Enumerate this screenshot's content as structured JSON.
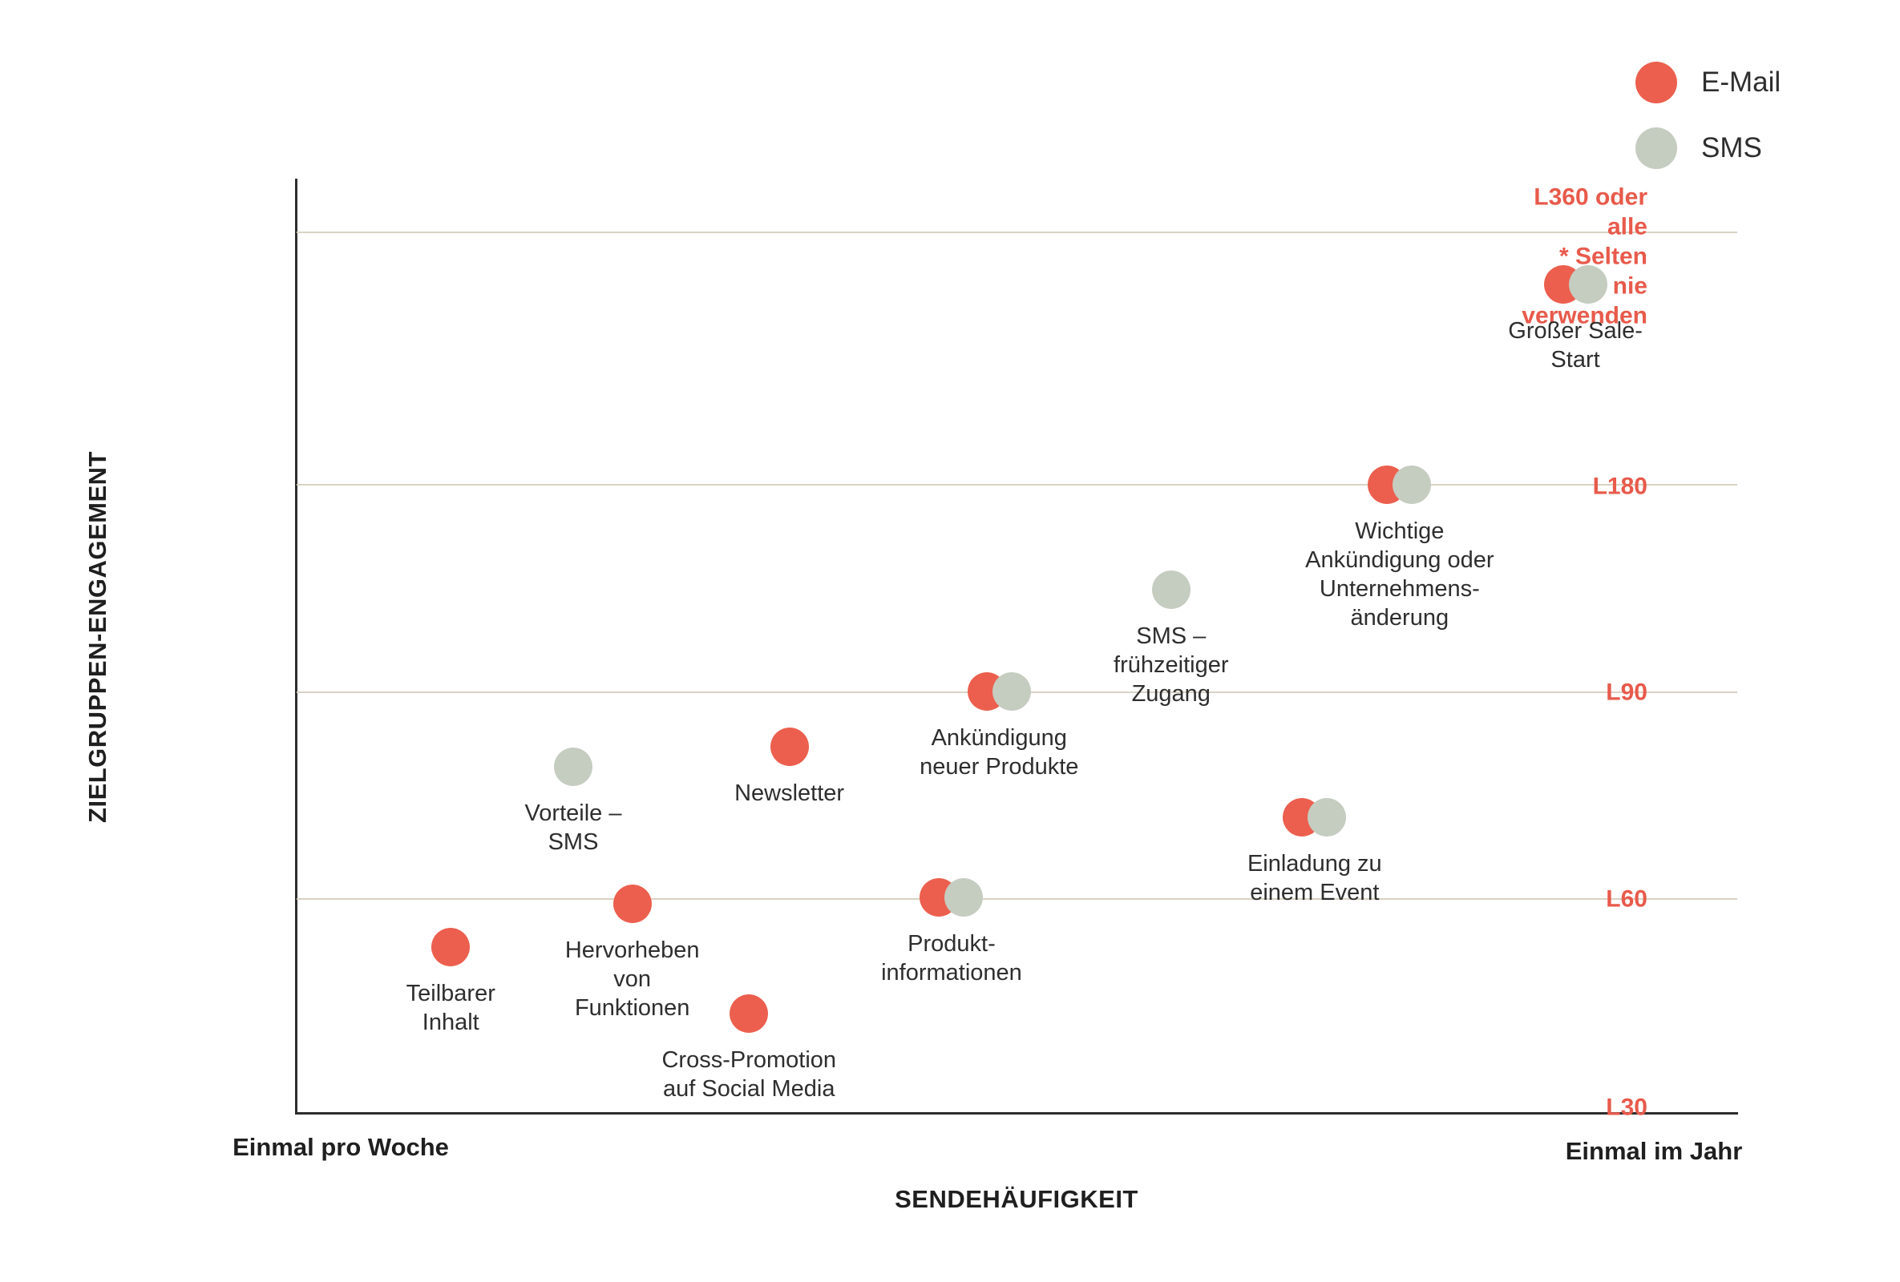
{
  "colors": {
    "email": "#ec5f4e",
    "sms": "#c5ccc0",
    "gridline": "#d9d2c3",
    "axis": "#2d2d2d",
    "tick_text": "#e85a4b",
    "label_text": "#2e2e2e"
  },
  "legend": {
    "items": [
      {
        "label": "E-Mail",
        "color": "#ec5f4e"
      },
      {
        "label": "SMS",
        "color": "#c5ccc0"
      }
    ]
  },
  "chart_data": {
    "type": "scatter",
    "title": "",
    "xlabel": "SENDEHÄUFIGKEIT",
    "ylabel": "ZIELGRUPPEN-ENGAGEMENT",
    "x_axis_labels": {
      "left": "Einmal pro Woche",
      "right": "Einmal im Jahr"
    },
    "x_range_meaning": "Sendehäufigkeit von einmal pro Woche (links) bis einmal im Jahr (rechts)",
    "grid": true,
    "legend_position": "top-right",
    "y_ticks": [
      {
        "lines": [
          "L360 oder",
          "alle",
          "* Selten",
          "oder nie",
          "verwenden"
        ],
        "y": 0.083,
        "gridline": true,
        "gridline_y": 0.0575
      },
      {
        "lines": [
          "L180"
        ],
        "y": 0.33,
        "gridline": true,
        "gridline_y": 0.328
      },
      {
        "lines": [
          "L90"
        ],
        "y": 0.55,
        "gridline": true,
        "gridline_y": 0.55
      },
      {
        "lines": [
          "L60"
        ],
        "y": 0.772,
        "gridline": true,
        "gridline_y": 0.772
      },
      {
        "lines": [
          "L30"
        ],
        "y": 0.995,
        "gridline": false,
        "gridline_y": 1.0
      }
    ],
    "series": [
      {
        "name": "E-Mail",
        "color": "#ec5f4e"
      },
      {
        "name": "SMS",
        "color": "#c5ccc0"
      }
    ],
    "points": [
      {
        "label": "Teilbarer Inhalt",
        "label_lines": [
          "Teilbarer",
          "Inhalt"
        ],
        "channels": [
          "E-Mail"
        ],
        "x": 0.107,
        "y": 0.823
      },
      {
        "label": "Hervorheben von Funktionen",
        "label_lines": [
          "Hervorheben",
          "von",
          "Funktionen"
        ],
        "channels": [
          "E-Mail"
        ],
        "x": 0.233,
        "y": 0.777
      },
      {
        "label": "Cross-Promotion auf Social Media",
        "label_lines": [
          "Cross-Promotion",
          "auf Social Media"
        ],
        "channels": [
          "E-Mail"
        ],
        "x": 0.314,
        "y": 0.894
      },
      {
        "label": "Vorteile – SMS",
        "label_lines": [
          "Vorteile –",
          "SMS"
        ],
        "channels": [
          "SMS"
        ],
        "x": 0.192,
        "y": 0.63
      },
      {
        "label": "Newsletter",
        "label_lines": [
          "Newsletter"
        ],
        "channels": [
          "E-Mail"
        ],
        "x": 0.342,
        "y": 0.609
      },
      {
        "label": "Produkt-informationen",
        "label_lines": [
          "Produkt-",
          "informationen"
        ],
        "channels": [
          "E-Mail",
          "SMS"
        ],
        "x": 0.446,
        "y": 0.77
      },
      {
        "label": "Ankündigung neuer Produkte",
        "label_lines": [
          "Ankündigung",
          "neuer Produkte"
        ],
        "channels": [
          "E-Mail",
          "SMS"
        ],
        "x": 0.479,
        "y": 0.549
      },
      {
        "label": "SMS – frühzeitiger Zugang",
        "label_lines": [
          "SMS –",
          "frühzeitiger",
          "Zugang"
        ],
        "channels": [
          "SMS"
        ],
        "x": 0.607,
        "y": 0.44
      },
      {
        "label": "Einladung zu einem Event",
        "label_lines": [
          "Einladung zu",
          "einem Event"
        ],
        "channels": [
          "E-Mail",
          "SMS"
        ],
        "x": 0.698,
        "y": 0.684
      },
      {
        "label": "Wichtige Ankündigung oder Unternehmensänderung",
        "label_lines": [
          "Wichtige",
          "Ankündigung oder",
          "Unternehmens-",
          "änderung"
        ],
        "channels": [
          "E-Mail",
          "SMS"
        ],
        "x": 0.757,
        "y": 0.328
      },
      {
        "label": "Großer Sale-Start",
        "label_lines": [
          "Großer Sale-",
          "Start"
        ],
        "channels": [
          "E-Mail",
          "SMS"
        ],
        "x": 0.879,
        "y": 0.113
      }
    ]
  }
}
